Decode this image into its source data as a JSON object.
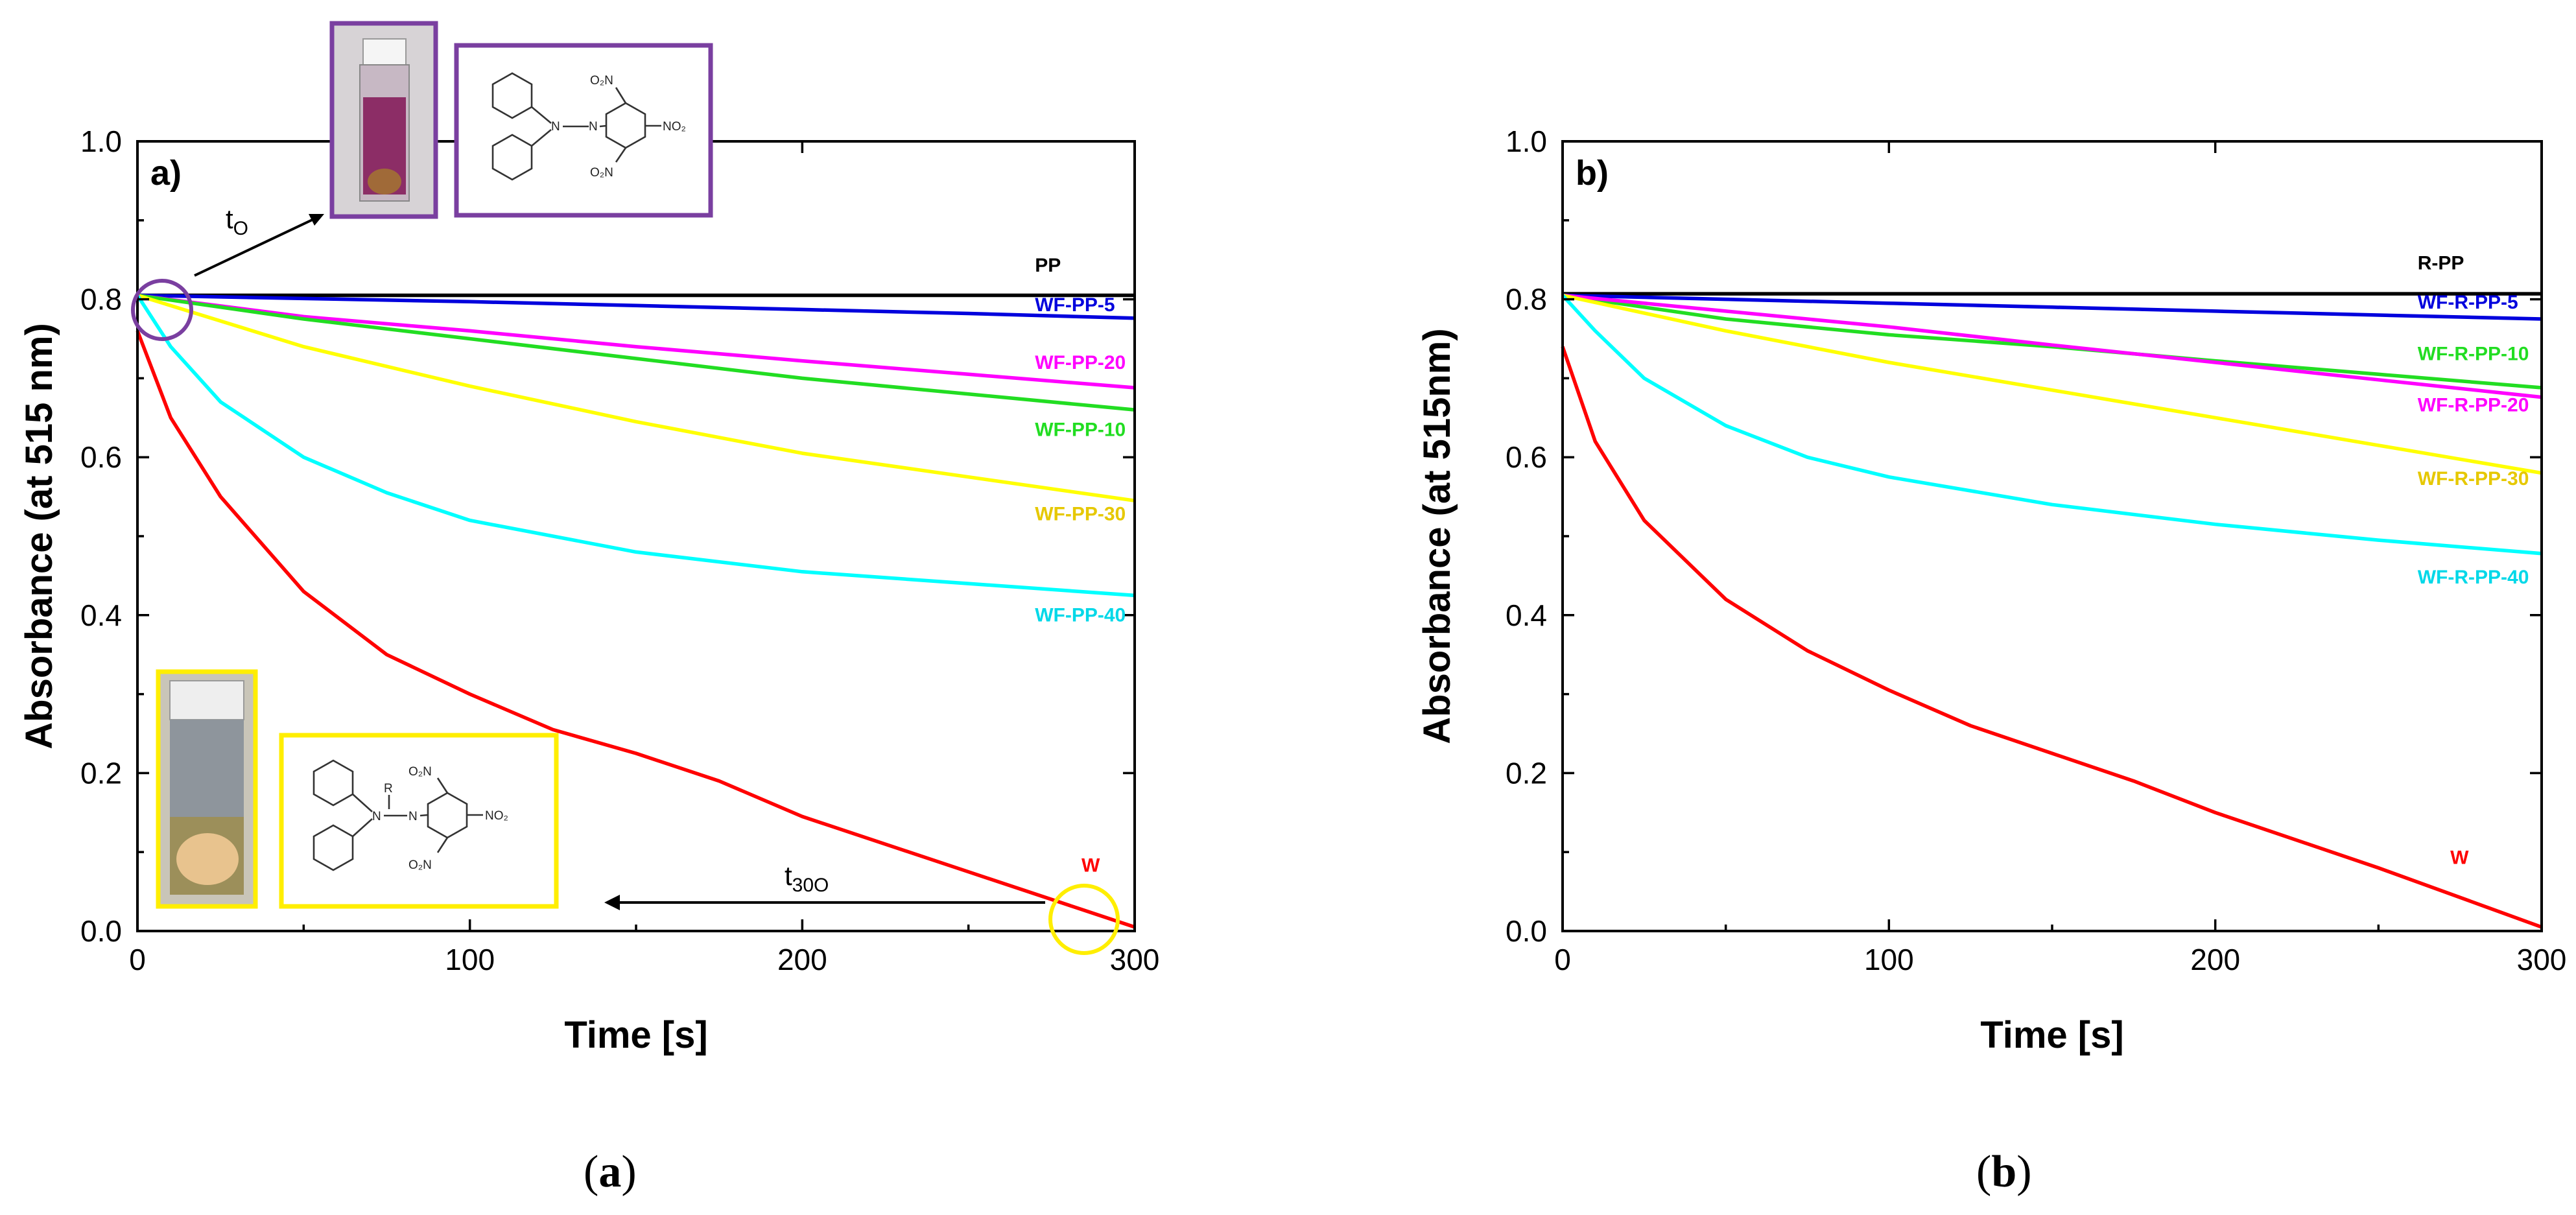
{
  "chart_data": [
    {
      "type": "line",
      "panel_tag": "a)",
      "caption_letter": "a",
      "xlabel": "Time [s]",
      "ylabel": "Absorbance (at 515 nm)",
      "xlim": [
        0,
        300
      ],
      "ylim": [
        0,
        1.0
      ],
      "xticks": [
        "0",
        "100",
        "200",
        "300"
      ],
      "yticks": [
        "0.0",
        "0.2",
        "0.4",
        "0.6",
        "0.8",
        "1.0"
      ],
      "series": [
        {
          "name": "PP",
          "color": "#000000",
          "x": [
            0,
            50,
            100,
            150,
            200,
            250,
            300
          ],
          "values": [
            0.805,
            0.805,
            0.805,
            0.805,
            0.805,
            0.805,
            0.805
          ]
        },
        {
          "name": "WF-PP-5",
          "color": "#0000dd",
          "x": [
            0,
            50,
            100,
            150,
            200,
            250,
            300
          ],
          "values": [
            0.805,
            0.801,
            0.797,
            0.792,
            0.787,
            0.782,
            0.776
          ]
        },
        {
          "name": "WF-PP-20",
          "color": "#ff00ff",
          "x": [
            0,
            50,
            100,
            150,
            200,
            250,
            300
          ],
          "values": [
            0.805,
            0.778,
            0.76,
            0.74,
            0.722,
            0.705,
            0.688
          ]
        },
        {
          "name": "WF-PP-10",
          "color": "#22dd22",
          "x": [
            0,
            50,
            100,
            150,
            200,
            250,
            300
          ],
          "values": [
            0.805,
            0.775,
            0.75,
            0.725,
            0.7,
            0.68,
            0.66
          ]
        },
        {
          "name": "WF-PP-30",
          "color": "#ffff00",
          "x": [
            0,
            50,
            100,
            150,
            200,
            250,
            300
          ],
          "values": [
            0.805,
            0.74,
            0.69,
            0.645,
            0.605,
            0.575,
            0.545
          ]
        },
        {
          "name": "WF-PP-40",
          "color": "#00ffff",
          "x": [
            0,
            10,
            25,
            50,
            75,
            100,
            150,
            200,
            250,
            300
          ],
          "values": [
            0.805,
            0.74,
            0.67,
            0.6,
            0.555,
            0.52,
            0.48,
            0.455,
            0.44,
            0.425
          ]
        },
        {
          "name": "W",
          "color": "#ff0000",
          "x": [
            0,
            10,
            25,
            50,
            75,
            100,
            125,
            150,
            175,
            200,
            250,
            300
          ],
          "values": [
            0.76,
            0.65,
            0.55,
            0.43,
            0.35,
            0.3,
            0.255,
            0.225,
            0.19,
            0.145,
            0.075,
            0.005
          ]
        }
      ],
      "label_positions_data": [
        {
          "name": "PP",
          "x": 270,
          "y": 0.835
        },
        {
          "name": "WF-PP-5",
          "x": 270,
          "y": 0.785
        },
        {
          "name": "WF-PP-20",
          "x": 270,
          "y": 0.712
        },
        {
          "name": "WF-PP-10",
          "x": 270,
          "y": 0.627
        },
        {
          "name": "WF-PP-30",
          "x": 270,
          "y": 0.52
        },
        {
          "name": "WF-PP-40",
          "x": 270,
          "y": 0.392
        },
        {
          "name": "W",
          "x": 284,
          "y": 0.075
        }
      ],
      "annotations": {
        "t0": "t",
        "t0_sub": "O",
        "t300": "t",
        "t300_sub": "30O",
        "chem_top": [
          "O₂N",
          "N",
          "N",
          "NO₂",
          "O₂N"
        ],
        "chem_bottom": [
          "O₂N",
          "R",
          "N",
          "N",
          "NO₂",
          "O₂N"
        ]
      }
    },
    {
      "type": "line",
      "panel_tag": "b)",
      "caption_letter": "b",
      "xlabel": "Time [s]",
      "ylabel": "Absorbance (at 515nm)",
      "xlim": [
        0,
        300
      ],
      "ylim": [
        0,
        1.0
      ],
      "xticks": [
        "0",
        "100",
        "200",
        "300"
      ],
      "yticks": [
        "0.0",
        "0.2",
        "0.4",
        "0.6",
        "0.8",
        "1.0"
      ],
      "series": [
        {
          "name": "R-PP",
          "color": "#000000",
          "x": [
            0,
            50,
            100,
            150,
            200,
            250,
            300
          ],
          "values": [
            0.807,
            0.807,
            0.807,
            0.807,
            0.807,
            0.807,
            0.807
          ]
        },
        {
          "name": "WF-R-PP-5",
          "color": "#0000dd",
          "x": [
            0,
            50,
            100,
            150,
            200,
            250,
            300
          ],
          "values": [
            0.805,
            0.8,
            0.795,
            0.79,
            0.785,
            0.78,
            0.775
          ]
        },
        {
          "name": "WF-R-PP-10",
          "color": "#22dd22",
          "x": [
            0,
            50,
            100,
            150,
            200,
            250,
            300
          ],
          "values": [
            0.805,
            0.775,
            0.755,
            0.74,
            0.722,
            0.705,
            0.688
          ]
        },
        {
          "name": "WF-R-PP-20",
          "color": "#ff00ff",
          "x": [
            0,
            50,
            100,
            150,
            200,
            250,
            300
          ],
          "values": [
            0.805,
            0.785,
            0.765,
            0.742,
            0.72,
            0.698,
            0.676
          ]
        },
        {
          "name": "WF-R-PP-30",
          "color": "#ffff00",
          "x": [
            0,
            50,
            100,
            150,
            200,
            250,
            300
          ],
          "values": [
            0.805,
            0.76,
            0.72,
            0.685,
            0.65,
            0.615,
            0.58
          ]
        },
        {
          "name": "WF-R-PP-40",
          "color": "#00ffff",
          "x": [
            0,
            10,
            25,
            50,
            75,
            100,
            150,
            200,
            250,
            300
          ],
          "values": [
            0.805,
            0.76,
            0.7,
            0.64,
            0.6,
            0.575,
            0.54,
            0.515,
            0.495,
            0.478
          ]
        },
        {
          "name": "W",
          "color": "#ff0000",
          "x": [
            0,
            10,
            25,
            50,
            75,
            100,
            125,
            150,
            175,
            200,
            250,
            300
          ],
          "values": [
            0.74,
            0.62,
            0.52,
            0.42,
            0.355,
            0.305,
            0.26,
            0.225,
            0.19,
            0.15,
            0.08,
            0.005
          ]
        }
      ],
      "label_positions_data": [
        {
          "name": "R-PP",
          "x": 262,
          "y": 0.838
        },
        {
          "name": "WF-R-PP-5",
          "x": 262,
          "y": 0.788
        },
        {
          "name": "WF-R-PP-10",
          "x": 262,
          "y": 0.723
        },
        {
          "name": "WF-R-PP-20",
          "x": 262,
          "y": 0.658
        },
        {
          "name": "WF-R-PP-30",
          "x": 262,
          "y": 0.565
        },
        {
          "name": "WF-R-PP-40",
          "x": 262,
          "y": 0.44
        },
        {
          "name": "W",
          "x": 272,
          "y": 0.085
        }
      ]
    }
  ]
}
